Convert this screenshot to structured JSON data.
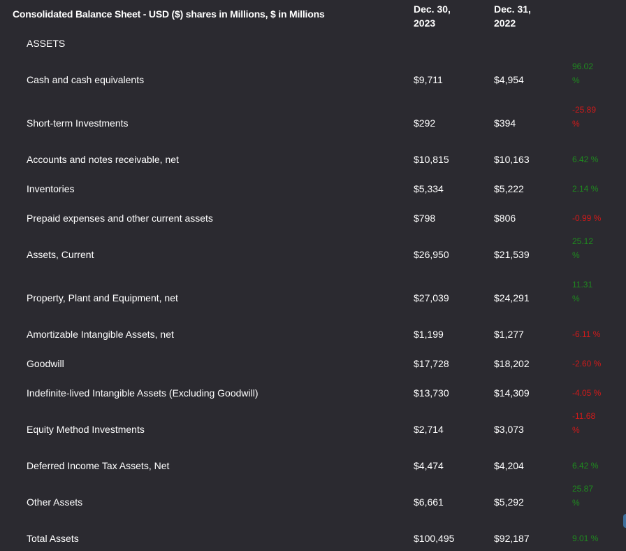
{
  "header": {
    "title": "Consolidated Balance Sheet - USD ($) shares in Millions, $ in Millions",
    "col1": "Dec. 30,\n2023",
    "col1_line1": "Dec. 30,",
    "col1_line2": "2023",
    "col2_line1": "Dec. 31,",
    "col2_line2": "2022"
  },
  "section": "ASSETS",
  "colors": {
    "background": "#2b2a30",
    "positive": "#1f8a1f",
    "negative": "#d01a1a"
  },
  "rows": [
    {
      "label": "Cash and cash equivalents",
      "v2023": "$9,711",
      "v2022": "$4,954",
      "change": "96.02 %",
      "direction": "positive"
    },
    {
      "label": "Short-term Investments",
      "v2023": "$292",
      "v2022": "$394",
      "change": "-25.89 %",
      "direction": "negative"
    },
    {
      "label": "Accounts and notes receivable, net",
      "v2023": "$10,815",
      "v2022": "$10,163",
      "change": "6.42 %",
      "direction": "positive"
    },
    {
      "label": "Inventories",
      "v2023": "$5,334",
      "v2022": "$5,222",
      "change": "2.14 %",
      "direction": "positive"
    },
    {
      "label": "Prepaid expenses and other current assets",
      "v2023": "$798",
      "v2022": "$806",
      "change": "-0.99 %",
      "direction": "negative"
    },
    {
      "label": "Assets, Current",
      "v2023": "$26,950",
      "v2022": "$21,539",
      "change": "25.12 %",
      "direction": "positive"
    },
    {
      "label": "Property, Plant and Equipment, net",
      "v2023": "$27,039",
      "v2022": "$24,291",
      "change": "11.31 %",
      "direction": "positive"
    },
    {
      "label": "Amortizable Intangible Assets, net",
      "v2023": "$1,199",
      "v2022": "$1,277",
      "change": "-6.11 %",
      "direction": "negative"
    },
    {
      "label": "Goodwill",
      "v2023": "$17,728",
      "v2022": "$18,202",
      "change": "-2.60 %",
      "direction": "negative"
    },
    {
      "label": "Indefinite-lived Intangible Assets (Excluding Goodwill)",
      "v2023": "$13,730",
      "v2022": "$14,309",
      "change": "-4.05 %",
      "direction": "negative"
    },
    {
      "label": "Equity Method Investments",
      "v2023": "$2,714",
      "v2022": "$3,073",
      "change": "-11.68 %",
      "direction": "negative"
    },
    {
      "label": "Deferred Income Tax Assets, Net",
      "v2023": "$4,474",
      "v2022": "$4,204",
      "change": "6.42 %",
      "direction": "positive"
    },
    {
      "label": "Other Assets",
      "v2023": "$6,661",
      "v2022": "$5,292",
      "change": "25.87 %",
      "direction": "positive"
    },
    {
      "label": "Total Assets",
      "v2023": "$100,495",
      "v2022": "$92,187",
      "change": "9.01 %",
      "direction": "positive"
    }
  ]
}
